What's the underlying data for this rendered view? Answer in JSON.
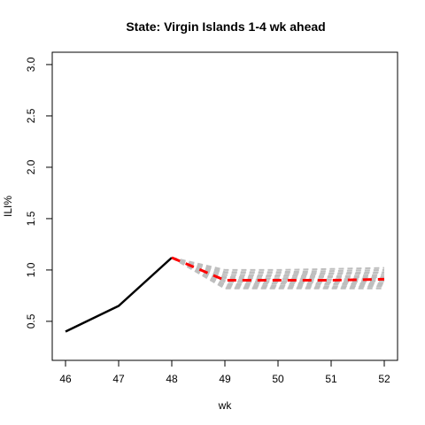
{
  "chart_data": {
    "type": "line",
    "title": "State: Virgin Islands 1-4 wk ahead",
    "xlabel": "wk",
    "ylabel": "ILI%",
    "xlim": [
      45.75,
      52.25
    ],
    "ylim": [
      0.12,
      3.12
    ],
    "x_ticks": [
      "46",
      "47",
      "48",
      "49",
      "50",
      "51",
      "52"
    ],
    "y_ticks": [
      "0.5",
      "1.0",
      "1.5",
      "2.0",
      "2.5",
      "3.0"
    ],
    "grid": false,
    "observed": {
      "color": "#000000",
      "style": "solid",
      "x": [
        46,
        47,
        48
      ],
      "y": [
        0.4,
        0.65,
        1.12
      ]
    },
    "forecast_mean": {
      "color": "#ff0000",
      "style": "dashed",
      "x": [
        48,
        49,
        50,
        51,
        52
      ],
      "y": [
        1.12,
        0.9,
        0.9,
        0.9,
        0.91
      ]
    },
    "ensemble": {
      "color": "#bebebe",
      "style": "dashed",
      "x": [
        48,
        49,
        50,
        51,
        52
      ],
      "members": [
        [
          1.12,
          1.0,
          1.0,
          1.01,
          1.02
        ],
        [
          1.12,
          0.98,
          0.98,
          0.99,
          1.0
        ],
        [
          1.12,
          0.97,
          0.97,
          0.97,
          0.98
        ],
        [
          1.12,
          0.95,
          0.95,
          0.96,
          0.97
        ],
        [
          1.12,
          0.93,
          0.94,
          0.94,
          0.95
        ],
        [
          1.12,
          0.92,
          0.92,
          0.93,
          0.93
        ],
        [
          1.12,
          0.9,
          0.91,
          0.91,
          0.92
        ],
        [
          1.12,
          0.89,
          0.89,
          0.9,
          0.9
        ],
        [
          1.12,
          0.88,
          0.88,
          0.88,
          0.89
        ],
        [
          1.12,
          0.86,
          0.87,
          0.87,
          0.87
        ],
        [
          1.12,
          0.85,
          0.85,
          0.86,
          0.86
        ],
        [
          1.12,
          0.84,
          0.84,
          0.84,
          0.85
        ],
        [
          1.12,
          0.83,
          0.83,
          0.83,
          0.84
        ],
        [
          1.12,
          0.82,
          0.82,
          0.82,
          0.82
        ]
      ]
    }
  }
}
